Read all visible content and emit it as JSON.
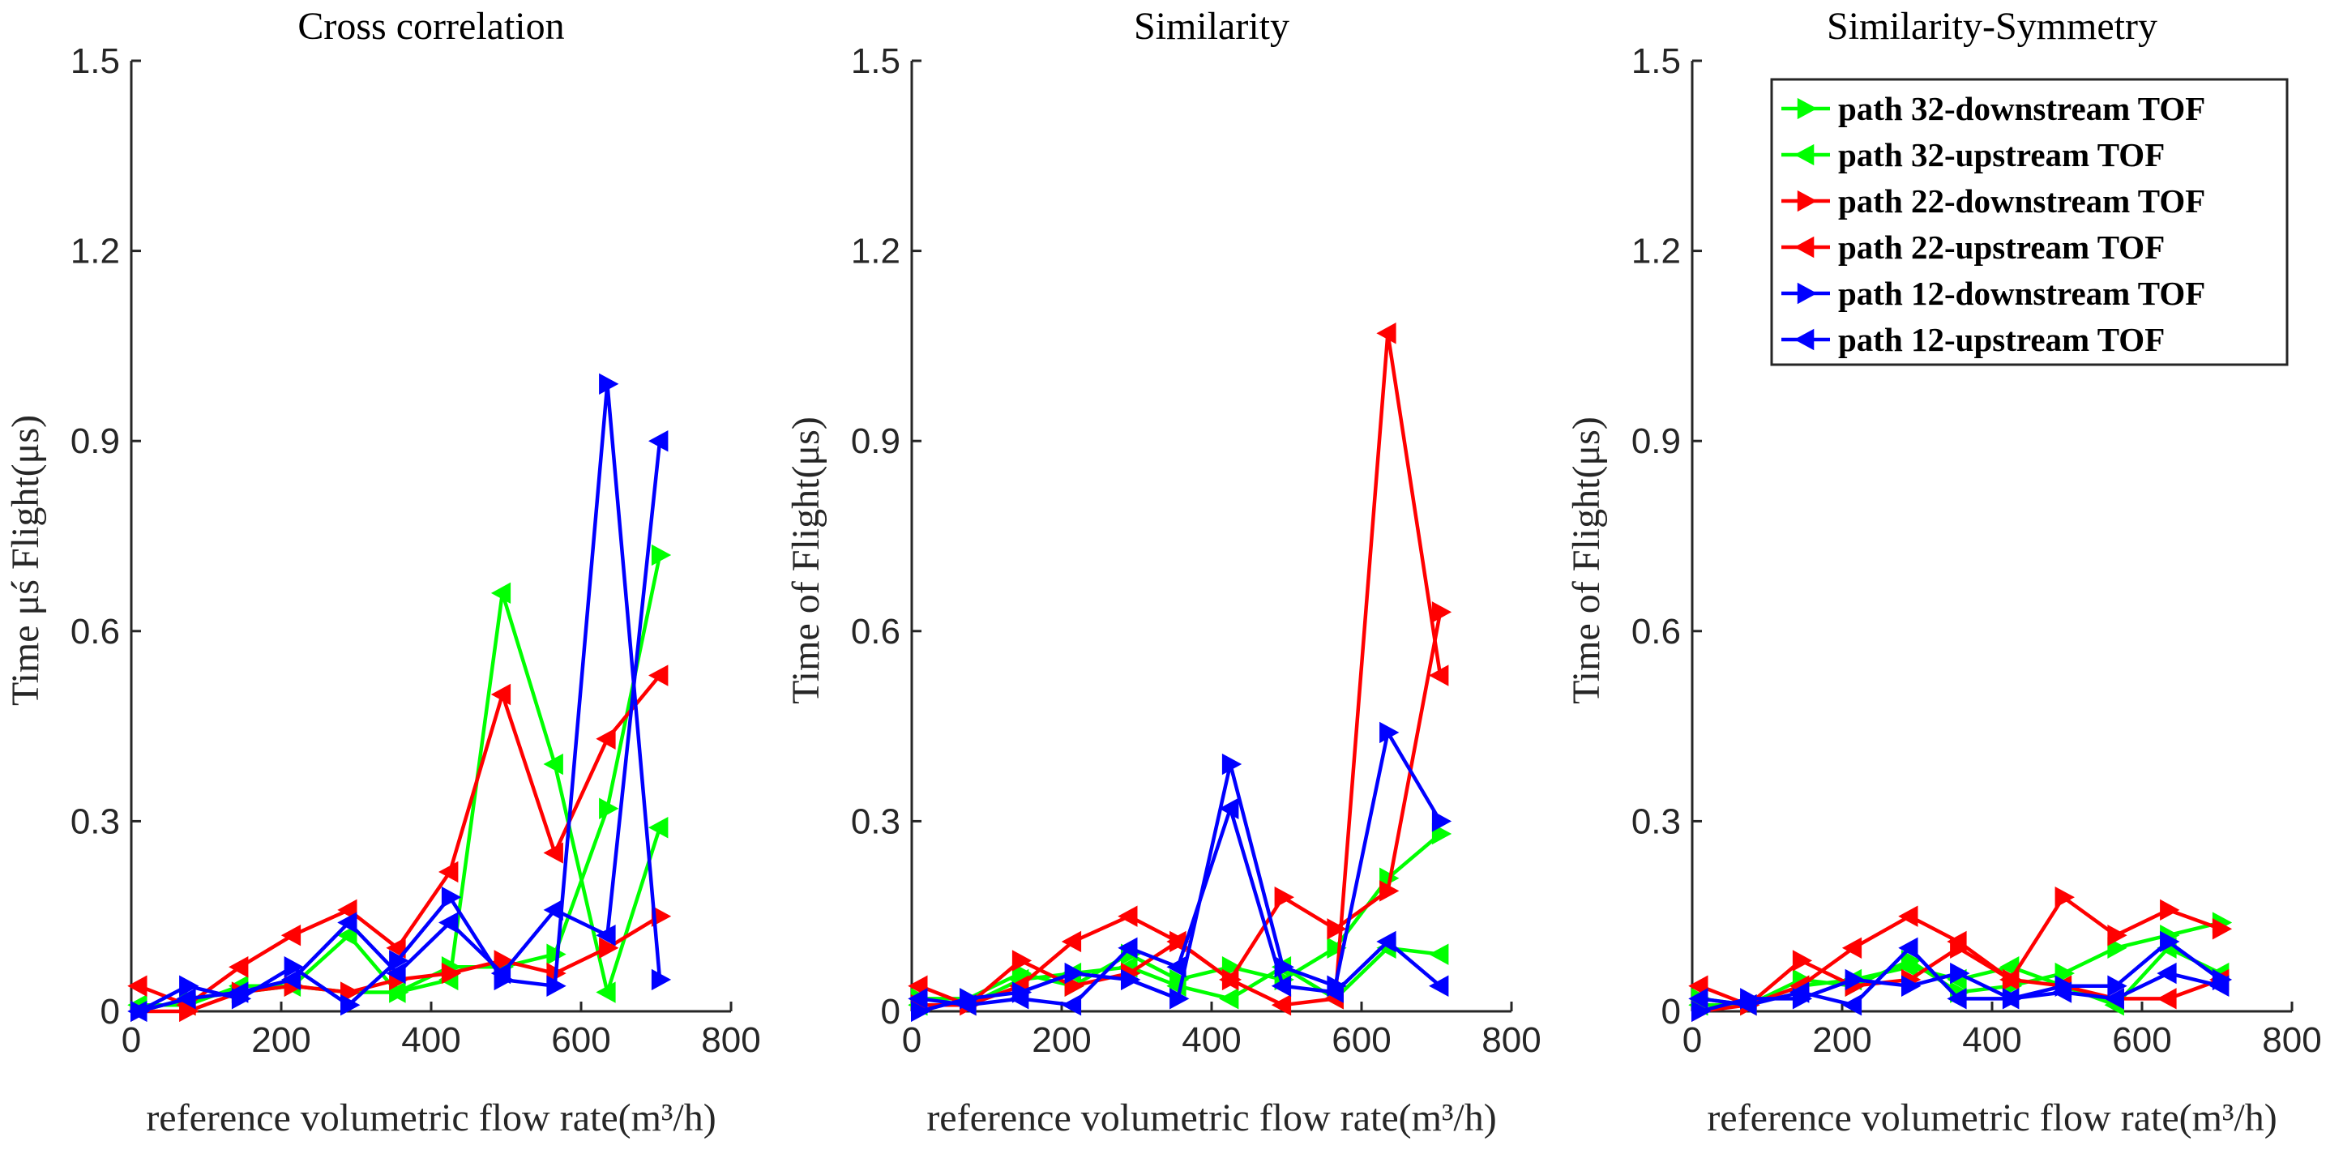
{
  "colors": {
    "green": "#00ff00",
    "red": "#ff0000",
    "blue": "#0000ff",
    "axis": "#262626"
  },
  "chart_data": [
    {
      "type": "line",
      "title": "Cross correlation",
      "xlabel": "reference volumetric flow rate(m³/h)",
      "ylabel": "Time μś Flight(μs)",
      "xlim": [
        0,
        800
      ],
      "ylim": [
        0,
        1.5
      ],
      "xticks": [
        "0",
        "200",
        "400",
        "600",
        "800"
      ],
      "yticks": [
        "0",
        "0.3",
        "0.6",
        "0.9",
        "1.2",
        "1.5"
      ],
      "x": [
        10,
        75,
        145,
        215,
        290,
        355,
        425,
        495,
        565,
        635,
        705
      ],
      "series": [
        {
          "name": "path 32-downstream TOF",
          "color": "#00ff00",
          "marker": "right",
          "values": [
            0.0,
            0.02,
            0.03,
            0.04,
            0.03,
            0.03,
            0.07,
            0.07,
            0.09,
            0.32,
            0.72
          ]
        },
        {
          "name": "path 32-upstream TOF",
          "color": "#00ff00",
          "marker": "left",
          "values": [
            0.01,
            0.01,
            0.04,
            0.04,
            0.12,
            0.03,
            0.05,
            0.66,
            0.39,
            0.03,
            0.29
          ]
        },
        {
          "name": "path 22-downstream TOF",
          "color": "#ff0000",
          "marker": "right",
          "values": [
            0.0,
            0.0,
            0.03,
            0.04,
            0.03,
            0.05,
            0.06,
            0.08,
            0.06,
            0.1,
            0.15
          ]
        },
        {
          "name": "path 22-upstream TOF",
          "color": "#ff0000",
          "marker": "left",
          "values": [
            0.04,
            0.01,
            0.07,
            0.12,
            0.16,
            0.1,
            0.22,
            0.5,
            0.25,
            0.43,
            0.53
          ]
        },
        {
          "name": "path 12-downstream TOF",
          "color": "#0000ff",
          "marker": "right",
          "values": [
            0.0,
            0.04,
            0.02,
            0.07,
            0.01,
            0.08,
            0.18,
            0.05,
            0.04,
            0.99,
            0.05
          ]
        },
        {
          "name": "path 12-upstream TOF",
          "color": "#0000ff",
          "marker": "left",
          "values": [
            0.0,
            0.02,
            0.03,
            0.05,
            0.14,
            0.06,
            0.14,
            0.06,
            0.16,
            0.12,
            0.9
          ]
        }
      ]
    },
    {
      "type": "line",
      "title": "Similarity",
      "xlabel": "reference volumetric flow rate(m³/h)",
      "ylabel": "Time of Flight(μs)",
      "xlim": [
        0,
        800
      ],
      "ylim": [
        0,
        1.5
      ],
      "xticks": [
        "0",
        "200",
        "400",
        "600",
        "800"
      ],
      "yticks": [
        "0",
        "0.3",
        "0.6",
        "0.9",
        "1.2",
        "1.5"
      ],
      "x": [
        10,
        75,
        145,
        215,
        290,
        355,
        425,
        495,
        565,
        635,
        705
      ],
      "series": [
        {
          "name": "path 32-downstream TOF",
          "color": "#00ff00",
          "marker": "right",
          "values": [
            0.02,
            0.02,
            0.06,
            0.04,
            0.09,
            0.05,
            0.07,
            0.05,
            0.1,
            0.21,
            0.28
          ]
        },
        {
          "name": "path 32-upstream TOF",
          "color": "#00ff00",
          "marker": "left",
          "values": [
            0.01,
            0.01,
            0.05,
            0.06,
            0.07,
            0.04,
            0.02,
            0.07,
            0.02,
            0.1,
            0.09
          ]
        },
        {
          "name": "path 22-downstream TOF",
          "color": "#ff0000",
          "marker": "right",
          "values": [
            0.01,
            0.01,
            0.08,
            0.04,
            0.06,
            0.11,
            0.05,
            0.18,
            0.13,
            0.19,
            0.63
          ]
        },
        {
          "name": "path 22-upstream TOF",
          "color": "#ff0000",
          "marker": "left",
          "values": [
            0.04,
            0.01,
            0.04,
            0.11,
            0.15,
            0.11,
            0.05,
            0.01,
            0.02,
            1.07,
            0.53
          ]
        },
        {
          "name": "path 12-downstream TOF",
          "color": "#0000ff",
          "marker": "right",
          "values": [
            0.0,
            0.02,
            0.03,
            0.06,
            0.05,
            0.02,
            0.39,
            0.07,
            0.04,
            0.44,
            0.3
          ]
        },
        {
          "name": "path 12-upstream TOF",
          "color": "#0000ff",
          "marker": "left",
          "values": [
            0.02,
            0.01,
            0.02,
            0.01,
            0.1,
            0.07,
            0.32,
            0.04,
            0.03,
            0.11,
            0.04
          ]
        }
      ]
    },
    {
      "type": "line",
      "title": "Similarity-Symmetry",
      "xlabel": "reference volumetric flow rate(m³/h)",
      "ylabel": "Time of Flight(μs)",
      "xlim": [
        0,
        800
      ],
      "ylim": [
        0,
        1.5
      ],
      "xticks": [
        "0",
        "200",
        "400",
        "600",
        "800"
      ],
      "yticks": [
        "0",
        "0.3",
        "0.6",
        "0.9",
        "1.2",
        "1.5"
      ],
      "x": [
        10,
        75,
        145,
        215,
        290,
        355,
        425,
        495,
        565,
        635,
        705
      ],
      "series": [
        {
          "name": "path 32-downstream TOF",
          "color": "#00ff00",
          "marker": "right",
          "values": [
            0.02,
            0.01,
            0.05,
            0.04,
            0.08,
            0.03,
            0.04,
            0.06,
            0.1,
            0.12,
            0.14
          ]
        },
        {
          "name": "path 32-upstream TOF",
          "color": "#00ff00",
          "marker": "left",
          "values": [
            0.01,
            0.01,
            0.04,
            0.05,
            0.07,
            0.05,
            0.07,
            0.04,
            0.01,
            0.1,
            0.06
          ]
        },
        {
          "name": "path 22-downstream TOF",
          "color": "#ff0000",
          "marker": "right",
          "values": [
            0.0,
            0.01,
            0.08,
            0.04,
            0.05,
            0.1,
            0.05,
            0.18,
            0.12,
            0.16,
            0.13
          ]
        },
        {
          "name": "path 22-upstream TOF",
          "color": "#ff0000",
          "marker": "left",
          "values": [
            0.04,
            0.01,
            0.04,
            0.1,
            0.15,
            0.11,
            0.05,
            0.04,
            0.02,
            0.02,
            0.05
          ]
        },
        {
          "name": "path 12-downstream TOF",
          "color": "#0000ff",
          "marker": "right",
          "values": [
            0.0,
            0.02,
            0.02,
            0.05,
            0.04,
            0.06,
            0.02,
            0.04,
            0.04,
            0.11,
            0.05
          ]
        },
        {
          "name": "path 12-upstream TOF",
          "color": "#0000ff",
          "marker": "left",
          "values": [
            0.02,
            0.01,
            0.03,
            0.01,
            0.1,
            0.02,
            0.02,
            0.03,
            0.02,
            0.06,
            0.04
          ]
        }
      ]
    }
  ],
  "legend": {
    "placement": "top-right of third plot",
    "items": [
      {
        "label": "path 32-downstream TOF",
        "color": "#00ff00",
        "marker": "right"
      },
      {
        "label": "path 32-upstream TOF",
        "color": "#00ff00",
        "marker": "left"
      },
      {
        "label": "path 22-downstream TOF",
        "color": "#ff0000",
        "marker": "right"
      },
      {
        "label": "path 22-upstream TOF",
        "color": "#ff0000",
        "marker": "left"
      },
      {
        "label": "path 12-downstream TOF",
        "color": "#0000ff",
        "marker": "right"
      },
      {
        "label": "path 12-upstream TOF",
        "color": "#0000ff",
        "marker": "left"
      }
    ]
  }
}
